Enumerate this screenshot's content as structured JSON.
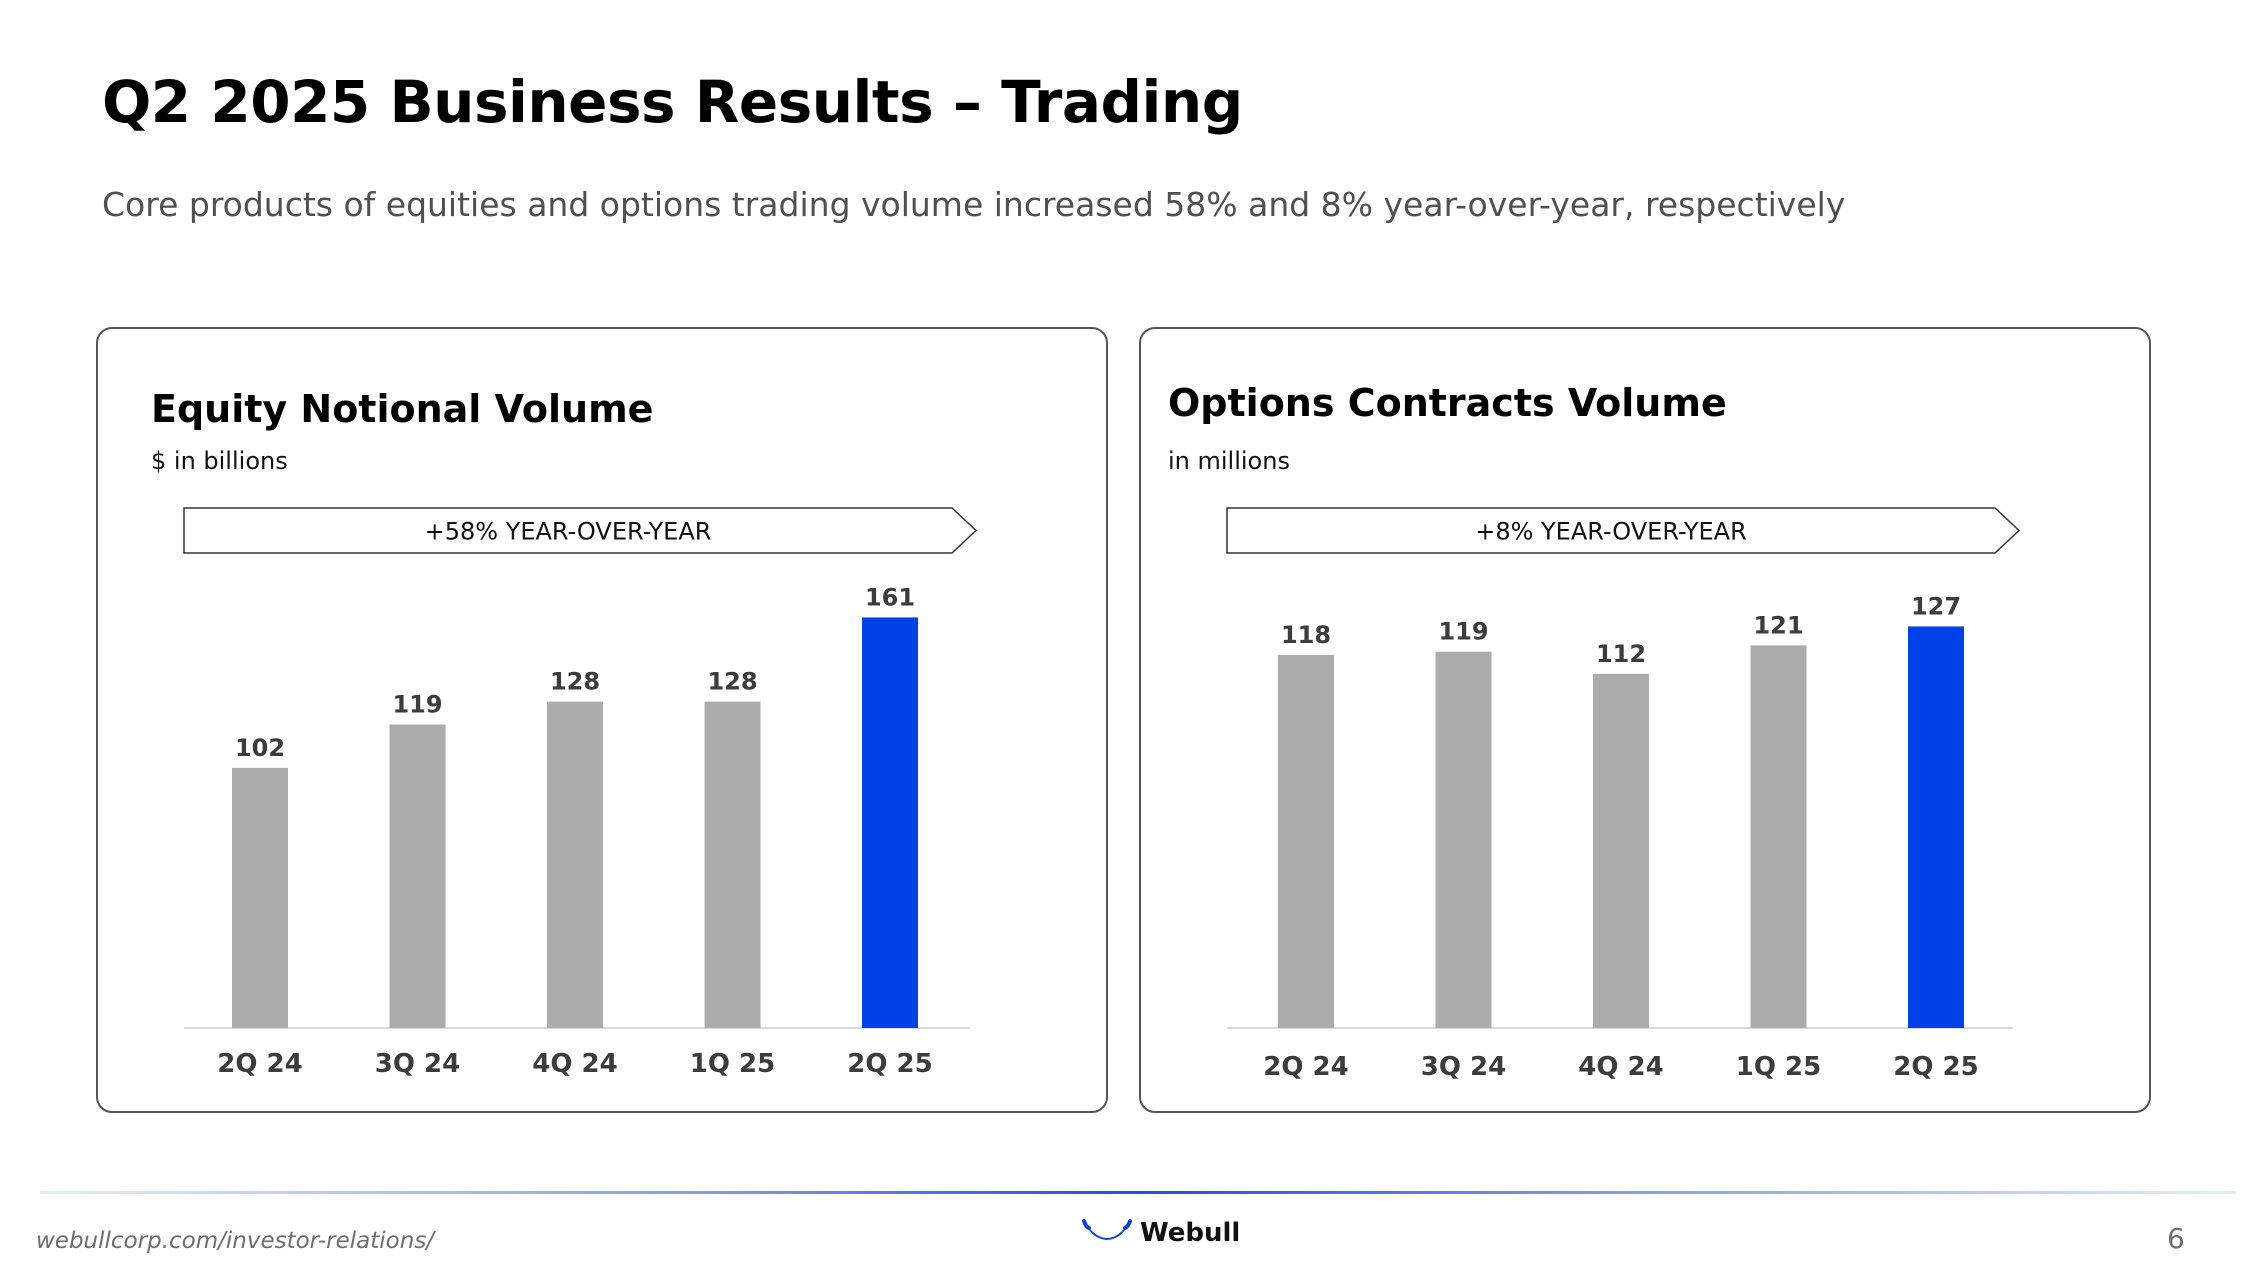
{
  "slide": {
    "title": "Q2 2025 Business Results – Trading",
    "subtitle": "Core products of equities and options trading volume increased 58% and 8% year-over-year, respectively"
  },
  "colors": {
    "bar_default": "#acacac",
    "bar_highlight": "#0041e8",
    "label": "#3c3c3c",
    "axis": "#d9d9d9"
  },
  "chart_data": [
    {
      "type": "bar",
      "title": "Equity Notional Volume",
      "ylabel": "$ in billions",
      "xlabel": "",
      "callout": "+58% YEAR-OVER-YEAR",
      "categories": [
        "2Q 24",
        "3Q 24",
        "4Q 24",
        "1Q 25",
        "2Q 25"
      ],
      "values": [
        102,
        119,
        128,
        128,
        161
      ],
      "value_labels": [
        "102",
        "119",
        "128",
        "128",
        "161"
      ],
      "highlight_index": 4,
      "ylim": [
        0,
        180
      ],
      "grid": false,
      "legend": "none"
    },
    {
      "type": "bar",
      "title": "Options Contracts Volume",
      "ylabel": "in millions",
      "xlabel": "",
      "callout": "+8% YEAR-OVER-YEAR",
      "categories": [
        "2Q 24",
        "3Q 24",
        "4Q 24",
        "1Q 25",
        "2Q 25"
      ],
      "values": [
        118,
        119,
        112,
        121,
        127
      ],
      "value_labels": [
        "118",
        "119",
        "112",
        "121",
        "127"
      ],
      "highlight_index": 4,
      "ylim": [
        0,
        142
      ],
      "grid": false,
      "legend": "none"
    }
  ],
  "footer": {
    "url": "webullcorp.com/investor-relations/",
    "brand": "Webull",
    "page_number": "6"
  }
}
